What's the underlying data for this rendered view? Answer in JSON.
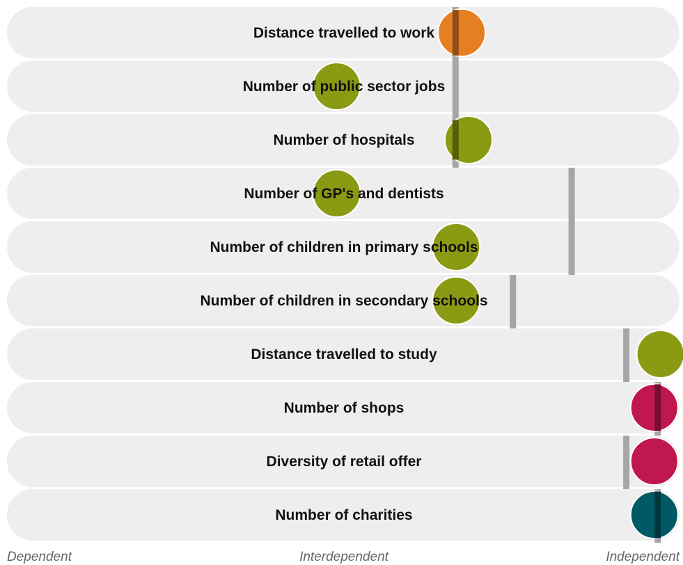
{
  "chart_data": {
    "type": "scatter",
    "xlim": [
      0,
      1
    ],
    "x_axis_labels": {
      "left": "Dependent",
      "middle": "Interdependent",
      "right": "Independent"
    },
    "colors": {
      "row_bg": "#eeeeee",
      "marker_line": "#a6a6a6",
      "orange": "#e67e22",
      "olive": "#8b9a13",
      "crimson": "#c0174f",
      "teal": "#005a66"
    },
    "rows": [
      {
        "label": "Distance travelled to work",
        "circle_x": 0.676,
        "marker_x": 0.667,
        "color": "orange"
      },
      {
        "label": "Number of public sector jobs",
        "circle_x": 0.493,
        "marker_x": 0.667,
        "color": "olive"
      },
      {
        "label": "Number of hospitals",
        "circle_x": 0.686,
        "marker_x": 0.667,
        "color": "olive"
      },
      {
        "label": "Number of GP's and dentists",
        "circle_x": 0.493,
        "marker_x": 0.837,
        "color": "olive"
      },
      {
        "label": "Number of children in primary schools",
        "circle_x": 0.668,
        "marker_x": 0.837,
        "color": "olive"
      },
      {
        "label": "Number of children in secondary schools",
        "circle_x": 0.668,
        "marker_x": 0.751,
        "color": "olive"
      },
      {
        "label": "Distance travelled to study",
        "circle_x": 0.967,
        "marker_x": 0.917,
        "color": "olive"
      },
      {
        "label": "Number of shops",
        "circle_x": 0.958,
        "marker_x": 0.963,
        "color": "crimson"
      },
      {
        "label": "Diversity of retail offer",
        "circle_x": 0.958,
        "marker_x": 0.917,
        "color": "crimson"
      },
      {
        "label": "Number of charities",
        "circle_x": 0.958,
        "marker_x": 0.963,
        "color": "teal"
      }
    ]
  }
}
